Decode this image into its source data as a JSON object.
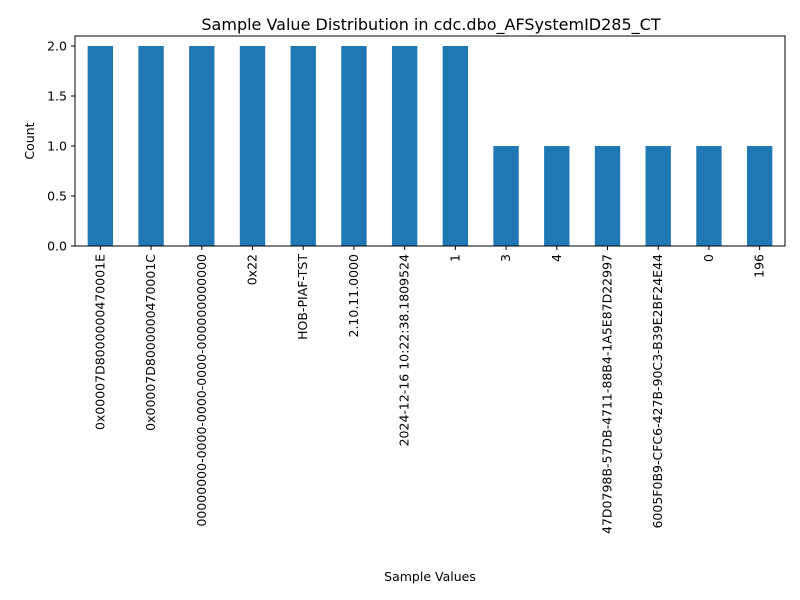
{
  "chart_data": {
    "type": "bar",
    "title": "Sample Value Distribution in cdc.dbo_AFSystemID285_CT",
    "xlabel": "Sample Values",
    "ylabel": "Count",
    "categories": [
      "0x00007D8000000470001E",
      "0x00007D8000000470001C",
      "00000000-0000-0000-0000-000000000000",
      "0x22",
      "HOB-PIAF-TST",
      "2.10.11.0000",
      "2024-12-16 10:22:38.1809524",
      "1",
      "3",
      "4",
      "47D0798B-57DB-4711-88B4-1A5E87D22997",
      "6005F0B9-CFC6-427B-90C3-B39E2BF24E44",
      "0",
      "196"
    ],
    "values": [
      2,
      2,
      2,
      2,
      2,
      2,
      2,
      2,
      1,
      1,
      1,
      1,
      1,
      1
    ],
    "ylim": [
      0,
      2.1
    ],
    "yticks": [
      "0.0",
      "0.5",
      "1.0",
      "1.5",
      "2.0"
    ],
    "bar_color": "#1f77b4",
    "grid": false,
    "legend": "none"
  }
}
